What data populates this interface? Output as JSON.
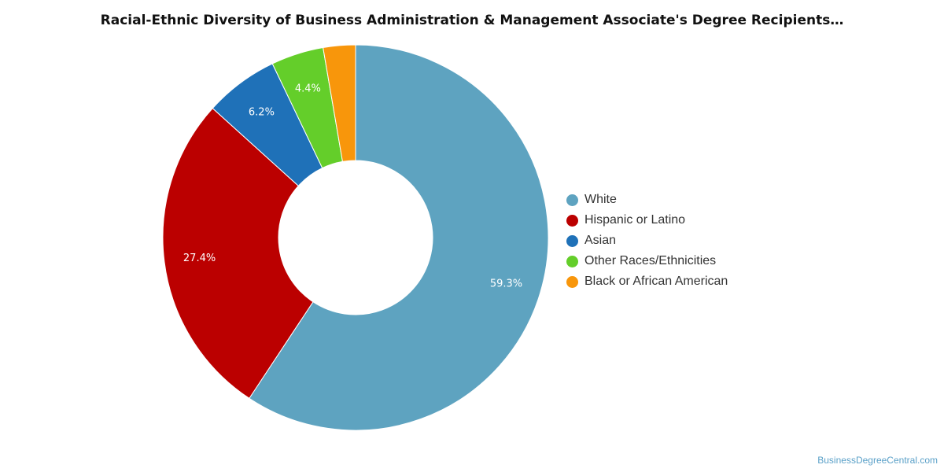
{
  "chart_data": {
    "type": "pie",
    "title": "Racial-Ethnic Diversity of Business Administration & Management Associate's Degree Recipients…",
    "legend_position": "right",
    "categories": [
      "White",
      "Hispanic or Latino",
      "Asian",
      "Other Races/Ethnicities",
      "Black or African American"
    ],
    "values": [
      59.3,
      27.4,
      6.2,
      4.4,
      2.7
    ],
    "labels": [
      "59.3%",
      "27.4%",
      "6.2%",
      "4.4%",
      ""
    ],
    "colors": [
      "#5ea3c0",
      "#bb0000",
      "#1f71b8",
      "#64ce2a",
      "#f8960b"
    ]
  },
  "credit": "BusinessDegreeCentral.com"
}
